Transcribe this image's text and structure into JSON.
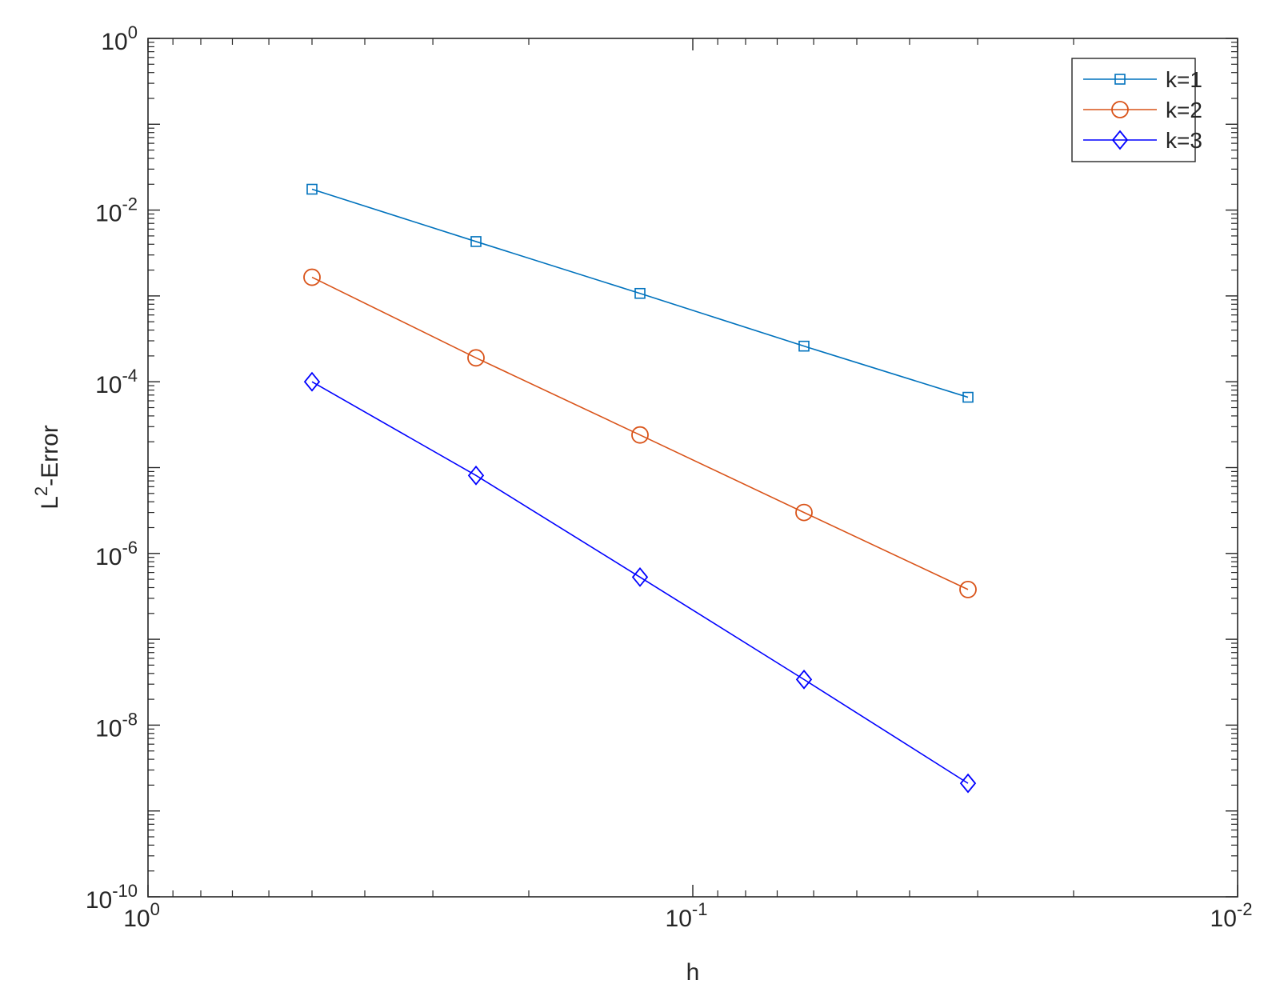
{
  "chart_data": {
    "type": "line",
    "xscale": "log",
    "yscale": "log",
    "xdir": "reverse",
    "xlim": [
      1,
      0.01
    ],
    "ylim": [
      1e-10,
      1
    ],
    "xlabel": "h",
    "ylabel": {
      "base": "L",
      "sup": "2",
      "rest": "-Error"
    },
    "xticks": [
      {
        "value": 1,
        "base": "10",
        "exp": "0"
      },
      {
        "value": 0.1,
        "base": "10",
        "exp": "-1"
      },
      {
        "value": 0.01,
        "base": "10",
        "exp": "-2"
      }
    ],
    "yticks": [
      {
        "value": 1,
        "base": "10",
        "exp": "0"
      },
      {
        "value": 0.01,
        "base": "10",
        "exp": "-2"
      },
      {
        "value": 0.0001,
        "base": "10",
        "exp": "-4"
      },
      {
        "value": 1e-06,
        "base": "10",
        "exp": "-6"
      },
      {
        "value": 1e-08,
        "base": "10",
        "exp": "-8"
      },
      {
        "value": 1e-10,
        "base": "10",
        "exp": "-10"
      }
    ],
    "x": [
      0.5,
      0.25,
      0.125,
      0.0625,
      0.03125
    ],
    "series": [
      {
        "name": "k=1",
        "marker": "square",
        "color": "#0072BD",
        "values": [
          0.0175,
          0.0043,
          0.00107,
          0.00026,
          6.6e-05
        ]
      },
      {
        "name": "k=2",
        "marker": "circle",
        "color": "#D95319",
        "values": [
          0.00165,
          0.00019,
          2.4e-05,
          3e-06,
          3.8e-07
        ]
      },
      {
        "name": "k=3",
        "marker": "diamond",
        "color": "#0000FF",
        "values": [
          0.0001,
          8.1e-06,
          5.3e-07,
          3.4e-08,
          2.1e-09
        ]
      }
    ],
    "grid": false,
    "legend": "top-right",
    "box": true
  }
}
